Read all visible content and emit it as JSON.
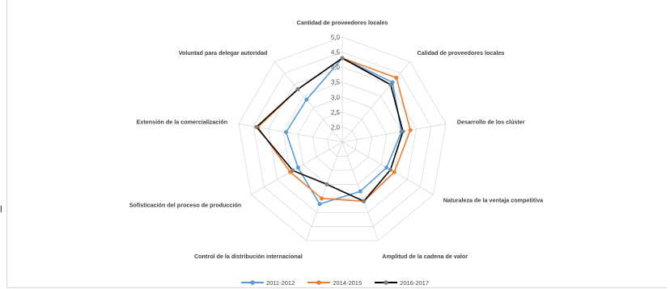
{
  "chart_data": {
    "type": "radar",
    "title": "",
    "categories": [
      "Cantidad de proveedores locales",
      "Calidad de proveedores locales",
      "Desarrollo de los clúster",
      "Naturaleza de la ventaja competitiva",
      "Amplitud de la cadena de valor",
      "Control de la distribución internacional",
      "Sofisticación del proceso de producción",
      "Extensión de la comercialización",
      "Voluntad para delegar autoridad"
    ],
    "rlim": [
      1.5,
      5.0
    ],
    "ticks": [
      2.0,
      2.5,
      3.0,
      3.5,
      4.0,
      4.5,
      5.0
    ],
    "tick_labels": [
      "2,0",
      "2,5",
      "3,0",
      "3,5",
      "4,0",
      "4,5",
      "5,0"
    ],
    "series": [
      {
        "name": "2011-2012",
        "color": "#5b9bd5",
        "values": [
          4.3,
          4.1,
          3.5,
          3.2,
          3.25,
          3.7,
          3.2,
          3.4,
          3.35
        ]
      },
      {
        "name": "2014-2015",
        "color": "#ed7d31",
        "values": [
          4.3,
          4.3,
          3.8,
          3.5,
          3.6,
          3.5,
          3.5,
          4.35,
          3.8
        ]
      },
      {
        "name": "2016-2017",
        "color": "#000000",
        "values": [
          4.3,
          4.0,
          3.55,
          3.35,
          3.6,
          3.0,
          3.4,
          4.4,
          3.8
        ]
      }
    ],
    "grid": true,
    "legend_position": "bottom"
  },
  "stray_text": "l",
  "edge_text": "ss"
}
